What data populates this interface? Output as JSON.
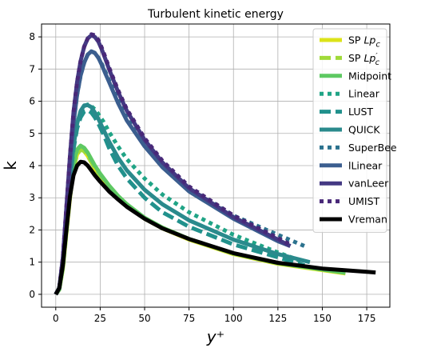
{
  "chart_data": {
    "type": "line",
    "title": "Turbulent kinetic energy",
    "xlabel": "y⁺",
    "ylabel": "k",
    "xlim": [
      -8,
      188
    ],
    "ylim": [
      -0.4,
      8.4
    ],
    "xticks": [
      0,
      25,
      50,
      75,
      100,
      125,
      150,
      175
    ],
    "yticks": [
      0,
      1,
      2,
      3,
      4,
      5,
      6,
      7,
      8
    ],
    "grid": true,
    "legend_position": "top-right",
    "series": [
      {
        "name": "SP Lp_c",
        "label_main": "SP ",
        "label_italic": "Lp",
        "label_sup": "",
        "label_sub": "c",
        "color": "#dce319",
        "dash": "solid",
        "width": 5,
        "x": [
          0,
          2,
          4,
          6,
          8,
          10,
          12,
          14,
          16,
          18,
          20,
          22,
          25,
          30,
          35,
          40,
          50,
          60,
          75,
          100,
          125,
          150,
          163
        ],
        "y": [
          0,
          0.15,
          0.8,
          1.9,
          3.0,
          3.9,
          4.35,
          4.5,
          4.45,
          4.3,
          4.1,
          3.9,
          3.65,
          3.3,
          3.0,
          2.75,
          2.35,
          2.05,
          1.7,
          1.25,
          0.95,
          0.75,
          0.65
        ]
      },
      {
        "name": "SP Lp'_c",
        "label_main": "SP ",
        "label_italic": "Lp",
        "label_sup": "′",
        "label_sub": "c",
        "color": "#a0da39",
        "dash": "dashed",
        "width": 5,
        "x": [
          0,
          2,
          4,
          6,
          8,
          10,
          12,
          14,
          16,
          18,
          20,
          22,
          25,
          30,
          35,
          40,
          50,
          60,
          75,
          100,
          125,
          150,
          163
        ],
        "y": [
          0,
          0.15,
          0.8,
          1.9,
          3.0,
          3.9,
          4.35,
          4.5,
          4.45,
          4.3,
          4.12,
          3.92,
          3.67,
          3.32,
          3.02,
          2.77,
          2.37,
          2.07,
          1.72,
          1.27,
          0.97,
          0.77,
          0.67
        ]
      },
      {
        "name": "Midpoint",
        "color": "#5ec962",
        "dash": "solid",
        "width": 5,
        "x": [
          0,
          2,
          4,
          6,
          8,
          10,
          12,
          14,
          16,
          18,
          20,
          22,
          25,
          30,
          35,
          40,
          50,
          60,
          75,
          100,
          125,
          150,
          163
        ],
        "y": [
          0,
          0.15,
          0.85,
          2.0,
          3.2,
          4.05,
          4.5,
          4.62,
          4.55,
          4.4,
          4.2,
          4.0,
          3.75,
          3.38,
          3.06,
          2.8,
          2.38,
          2.07,
          1.72,
          1.27,
          0.97,
          0.77,
          0.67
        ]
      },
      {
        "name": "Linear",
        "color": "#20a486",
        "dash": "dotted",
        "width": 5,
        "x": [
          0,
          2,
          4,
          6,
          8,
          10,
          12,
          14,
          16,
          18,
          20,
          22,
          24,
          27,
          30,
          35,
          40,
          50,
          60,
          75,
          100,
          125,
          140
        ],
        "y": [
          0,
          0.2,
          1.0,
          2.3,
          3.6,
          4.6,
          5.3,
          5.65,
          5.85,
          5.9,
          5.85,
          5.75,
          5.6,
          5.35,
          5.05,
          4.6,
          4.2,
          3.6,
          3.1,
          2.55,
          1.85,
          1.3,
          1.0
        ]
      },
      {
        "name": "LUST",
        "color": "#21918c",
        "dash": "dashed",
        "width": 5,
        "x": [
          0,
          2,
          4,
          6,
          8,
          10,
          12,
          14,
          16,
          18,
          20,
          22,
          24,
          27,
          30,
          35,
          40,
          50,
          60,
          75,
          100,
          125,
          140
        ],
        "y": [
          0,
          0.2,
          1.0,
          2.25,
          3.5,
          4.5,
          5.15,
          5.5,
          5.68,
          5.72,
          5.65,
          5.5,
          5.3,
          4.95,
          4.55,
          4.0,
          3.6,
          3.0,
          2.55,
          2.1,
          1.55,
          1.15,
          0.9
        ]
      },
      {
        "name": "QUICK",
        "color": "#2a8a8c",
        "dash": "solid",
        "width": 5,
        "x": [
          0,
          2,
          4,
          6,
          8,
          10,
          12,
          14,
          16,
          18,
          20,
          22,
          24,
          27,
          30,
          35,
          40,
          50,
          60,
          75,
          100,
          125,
          143
        ],
        "y": [
          0,
          0.2,
          1.0,
          2.25,
          3.55,
          4.6,
          5.3,
          5.7,
          5.87,
          5.88,
          5.82,
          5.65,
          5.45,
          5.1,
          4.75,
          4.25,
          3.85,
          3.25,
          2.8,
          2.3,
          1.7,
          1.25,
          1.0
        ]
      },
      {
        "name": "SuperBee",
        "color": "#2c728e",
        "dash": "dotted",
        "width": 5,
        "x": [
          0,
          2,
          4,
          6,
          8,
          10,
          12,
          14,
          16,
          18,
          20,
          22,
          24,
          26,
          28,
          30,
          35,
          40,
          50,
          60,
          75,
          100,
          125,
          140
        ],
        "y": [
          0,
          0.2,
          1.1,
          2.5,
          4.0,
          5.3,
          6.2,
          6.8,
          7.2,
          7.45,
          7.55,
          7.5,
          7.35,
          7.15,
          6.9,
          6.65,
          6.05,
          5.5,
          4.7,
          4.05,
          3.3,
          2.45,
          1.85,
          1.5
        ]
      },
      {
        "name": "lLinear",
        "color": "#3b5e8f",
        "dash": "solid",
        "width": 5,
        "x": [
          0,
          2,
          4,
          6,
          8,
          10,
          12,
          14,
          16,
          18,
          20,
          22,
          24,
          26,
          28,
          30,
          35,
          40,
          50,
          60,
          75,
          100,
          125,
          132
        ],
        "y": [
          0,
          0.2,
          1.1,
          2.5,
          4.0,
          5.3,
          6.2,
          6.8,
          7.2,
          7.45,
          7.55,
          7.5,
          7.35,
          7.12,
          6.85,
          6.6,
          5.95,
          5.4,
          4.6,
          3.95,
          3.2,
          2.35,
          1.65,
          1.5
        ]
      },
      {
        "name": "vanLeer",
        "color": "#443983",
        "dash": "solid",
        "width": 5,
        "x": [
          0,
          2,
          4,
          6,
          8,
          10,
          12,
          14,
          16,
          18,
          20,
          22,
          24,
          26,
          28,
          30,
          35,
          40,
          50,
          60,
          75,
          100,
          125,
          132
        ],
        "y": [
          0,
          0.2,
          1.15,
          2.7,
          4.3,
          5.65,
          6.6,
          7.25,
          7.7,
          7.95,
          8.05,
          8.0,
          7.85,
          7.6,
          7.3,
          7.0,
          6.3,
          5.7,
          4.8,
          4.1,
          3.3,
          2.4,
          1.7,
          1.5
        ]
      },
      {
        "name": "UMIST",
        "color": "#482878",
        "dash": "dotted",
        "width": 5,
        "x": [
          0,
          2,
          4,
          6,
          8,
          10,
          12,
          14,
          16,
          18,
          20,
          22,
          24,
          26,
          28,
          30,
          35,
          40,
          50,
          60,
          75,
          100,
          125,
          132
        ],
        "y": [
          0,
          0.2,
          1.15,
          2.7,
          4.3,
          5.65,
          6.6,
          7.25,
          7.7,
          7.95,
          8.08,
          8.05,
          7.9,
          7.65,
          7.35,
          7.05,
          6.35,
          5.75,
          4.85,
          4.15,
          3.35,
          2.45,
          1.75,
          1.55
        ]
      },
      {
        "name": "Vreman",
        "color": "#000000",
        "dash": "solid",
        "width": 5,
        "x": [
          0,
          2,
          4,
          6,
          8,
          10,
          12,
          14,
          16,
          18,
          20,
          22,
          25,
          30,
          35,
          40,
          50,
          60,
          75,
          100,
          125,
          150,
          175,
          180
        ],
        "y": [
          0,
          0.2,
          0.9,
          2.0,
          3.05,
          3.7,
          4.0,
          4.12,
          4.1,
          4.0,
          3.85,
          3.7,
          3.5,
          3.2,
          2.95,
          2.72,
          2.35,
          2.05,
          1.72,
          1.28,
          0.98,
          0.8,
          0.7,
          0.68
        ]
      }
    ]
  }
}
